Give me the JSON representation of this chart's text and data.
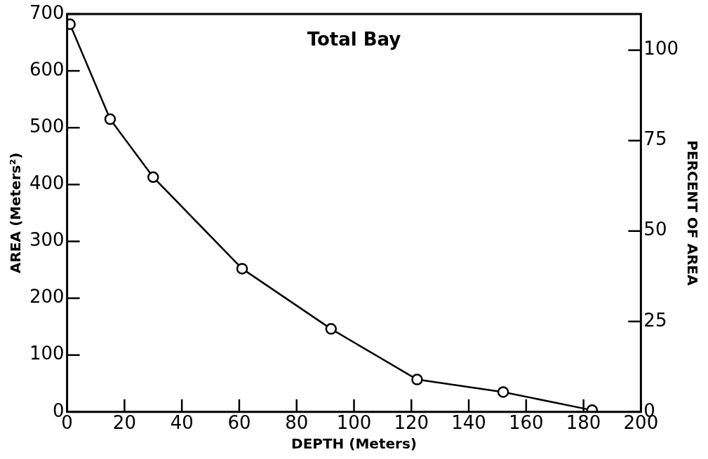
{
  "chart_data": {
    "type": "line",
    "title": "Total Bay",
    "xlabel": "DEPTH (Meters)",
    "ylabel": "AREA (Meters²)",
    "y2label": "PERCENT OF AREA",
    "x": [
      1,
      15,
      30,
      61,
      92,
      122,
      152,
      183
    ],
    "series": [
      {
        "color": "#000000",
        "values": [
          682,
          515,
          413,
          252,
          146,
          57,
          35,
          3
        ]
      }
    ],
    "xlim": [
      0,
      200
    ],
    "xticks": [
      0,
      20,
      40,
      60,
      80,
      100,
      120,
      140,
      160,
      180,
      200
    ],
    "ylim": [
      0,
      700
    ],
    "yticks": [
      0,
      100,
      200,
      300,
      400,
      500,
      600,
      700
    ],
    "y2lim": [
      0,
      110
    ],
    "y2ticks": [
      0,
      25,
      50,
      75,
      100
    ],
    "marker": "circle",
    "line_style": "solid",
    "legend": false
  }
}
